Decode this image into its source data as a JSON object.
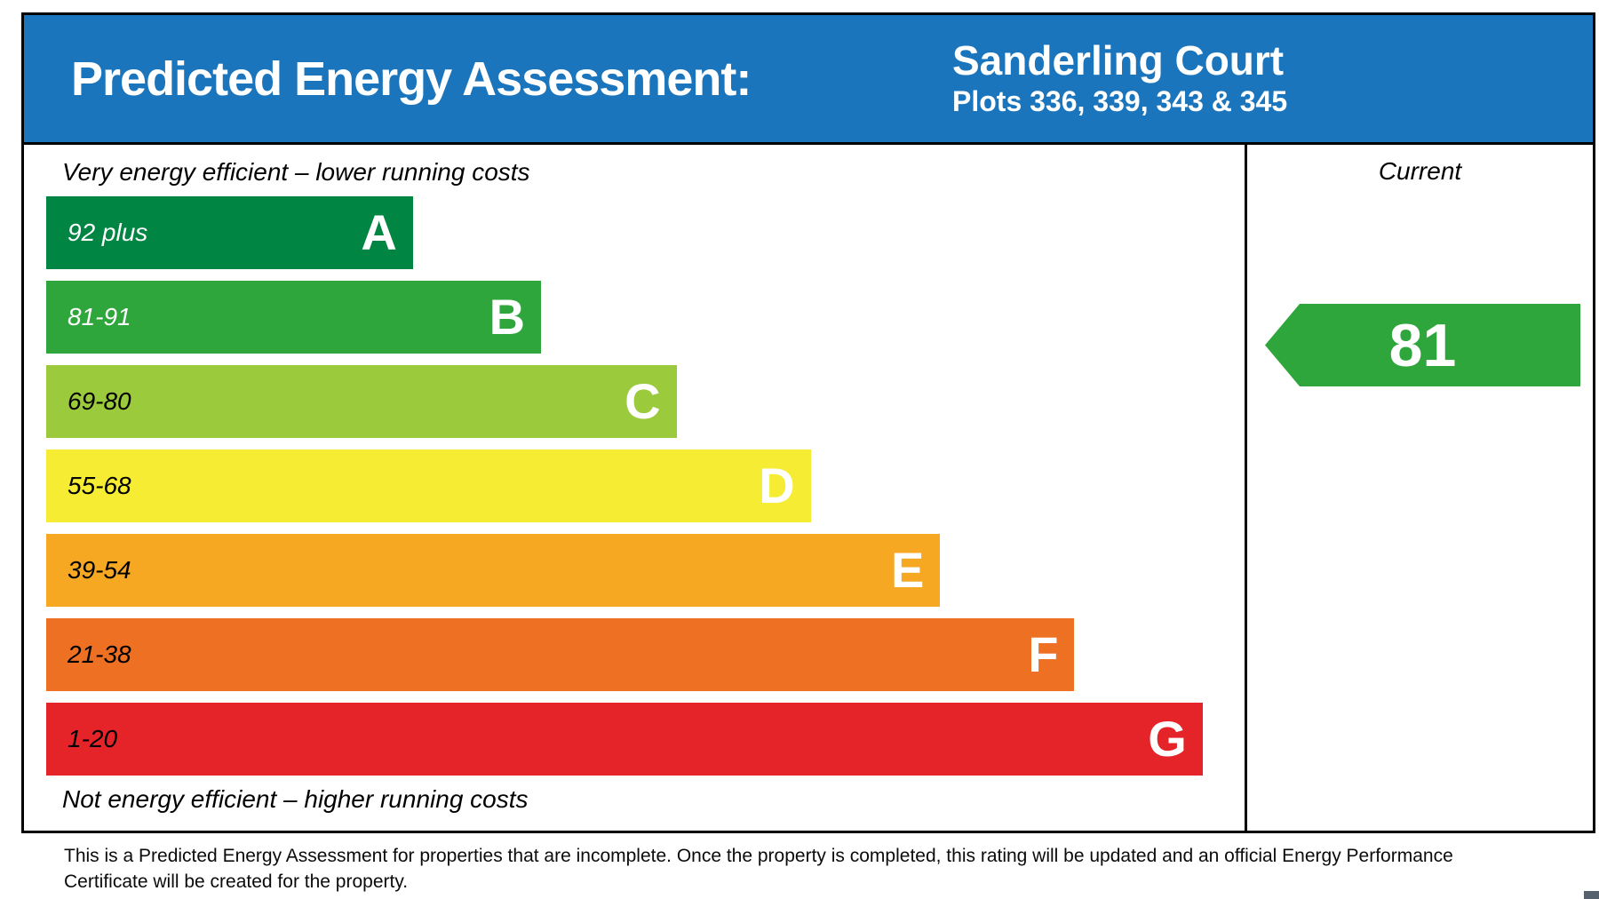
{
  "header": {
    "title": "Predicted Energy Assessment:",
    "property_name": "Sanderling Court",
    "property_plots": "Plots 336, 339, 343 & 345"
  },
  "colors": {
    "header_blue": "#1b75bc",
    "arrow_green": "#2fa63c",
    "border_black": "#000000"
  },
  "chart_data": {
    "type": "bar",
    "title": "Predicted Energy Assessment",
    "top_caption": "Very energy efficient – lower running costs",
    "bottom_caption": "Not energy efficient – higher running costs",
    "column_header": "Current",
    "current_rating": "81",
    "current_band": "B",
    "legend_position": "right",
    "bands": [
      {
        "letter": "A",
        "range": "92 plus",
        "color": "#008542",
        "width_pct": 30.6,
        "range_text_color": "#ffffff"
      },
      {
        "letter": "B",
        "range": "81-91",
        "color": "#2fa63c",
        "width_pct": 41.3,
        "range_text_color": "#ffffff"
      },
      {
        "letter": "C",
        "range": "69-80",
        "color": "#9bca3c",
        "width_pct": 52.6,
        "range_text_color": "#000000"
      },
      {
        "letter": "D",
        "range": "55-68",
        "color": "#f5ec33",
        "width_pct": 63.8,
        "range_text_color": "#000000"
      },
      {
        "letter": "E",
        "range": "39-54",
        "color": "#f7a823",
        "width_pct": 74.6,
        "range_text_color": "#000000"
      },
      {
        "letter": "F",
        "range": "21-38",
        "color": "#ee7023",
        "width_pct": 85.8,
        "range_text_color": "#000000"
      },
      {
        "letter": "G",
        "range": "1-20",
        "color": "#e5242a",
        "width_pct": 96.5,
        "range_text_color": "#000000"
      }
    ]
  },
  "footer": {
    "disclaimer": "This is a Predicted Energy Assessment for properties that are incomplete. Once the property is completed, this rating will be updated and an official Energy Performance Certificate will be created for the property."
  }
}
